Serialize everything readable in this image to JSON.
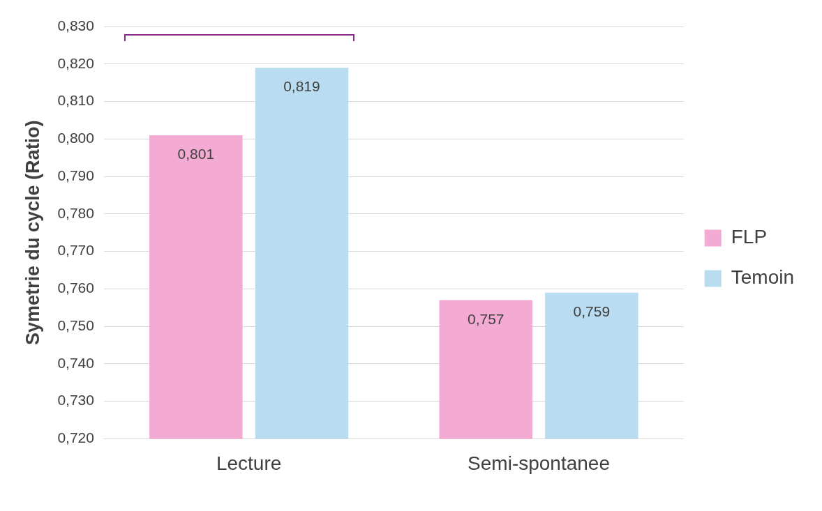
{
  "chart_data": {
    "type": "bar",
    "ylabel": "Symetrie du cycle (Ratio)",
    "categories": [
      "Lecture",
      "Semi-spontanee"
    ],
    "series": [
      {
        "name": "FLP",
        "color": "#f3aad3",
        "values": [
          0.801,
          0.757
        ],
        "value_labels": [
          "0,801",
          "0,757"
        ]
      },
      {
        "name": "Temoin",
        "color": "#b9dcf1",
        "values": [
          0.819,
          0.759
        ],
        "value_labels": [
          "0,819",
          "0,759"
        ]
      }
    ],
    "ylim": [
      0.72,
      0.83
    ],
    "yticks": [
      {
        "value": 0.72,
        "label": "0,720"
      },
      {
        "value": 0.73,
        "label": "0,730"
      },
      {
        "value": 0.74,
        "label": "0,740"
      },
      {
        "value": 0.75,
        "label": "0,750"
      },
      {
        "value": 0.76,
        "label": "0,760"
      },
      {
        "value": 0.77,
        "label": "0,770"
      },
      {
        "value": 0.78,
        "label": "0,780"
      },
      {
        "value": 0.79,
        "label": "0,790"
      },
      {
        "value": 0.8,
        "label": "0,800"
      },
      {
        "value": 0.81,
        "label": "0,810"
      },
      {
        "value": 0.82,
        "label": "0,820"
      },
      {
        "value": 0.83,
        "label": "0,830"
      }
    ],
    "grid": "y",
    "legend": "right"
  }
}
